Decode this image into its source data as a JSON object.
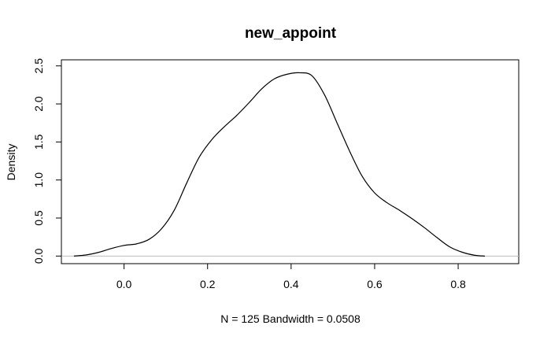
{
  "chart_data": {
    "type": "line",
    "title": "new_appoint",
    "xlabel": "N = 125   Bandwidth = 0.0508",
    "ylabel": "Density",
    "xlim": [
      -0.15,
      0.945
    ],
    "ylim": [
      -0.1,
      2.58
    ],
    "x_ticks": [
      0.0,
      0.2,
      0.4,
      0.6,
      0.8
    ],
    "x_tick_labels": [
      "0.0",
      "0.2",
      "0.4",
      "0.6",
      "0.8"
    ],
    "y_ticks": [
      0.0,
      0.5,
      1.0,
      1.5,
      2.0,
      2.5
    ],
    "y_tick_labels": [
      "0.0",
      "0.5",
      "1.0",
      "1.5",
      "2.0",
      "2.5"
    ],
    "baseline": 0,
    "grid": false,
    "series": [
      {
        "color": "#000000",
        "x": [
          -0.12,
          -0.09,
          -0.06,
          -0.03,
          0.0,
          0.03,
          0.06,
          0.09,
          0.12,
          0.15,
          0.18,
          0.21,
          0.24,
          0.27,
          0.3,
          0.33,
          0.36,
          0.39,
          0.42,
          0.45,
          0.48,
          0.51,
          0.54,
          0.57,
          0.6,
          0.63,
          0.66,
          0.69,
          0.72,
          0.75,
          0.78,
          0.81,
          0.84,
          0.864
        ],
        "y": [
          0.0,
          0.015,
          0.05,
          0.1,
          0.14,
          0.16,
          0.22,
          0.36,
          0.6,
          0.96,
          1.3,
          1.53,
          1.7,
          1.85,
          2.02,
          2.2,
          2.33,
          2.39,
          2.41,
          2.37,
          2.12,
          1.75,
          1.38,
          1.05,
          0.83,
          0.7,
          0.6,
          0.49,
          0.37,
          0.24,
          0.12,
          0.05,
          0.01,
          0.0
        ]
      }
    ]
  }
}
